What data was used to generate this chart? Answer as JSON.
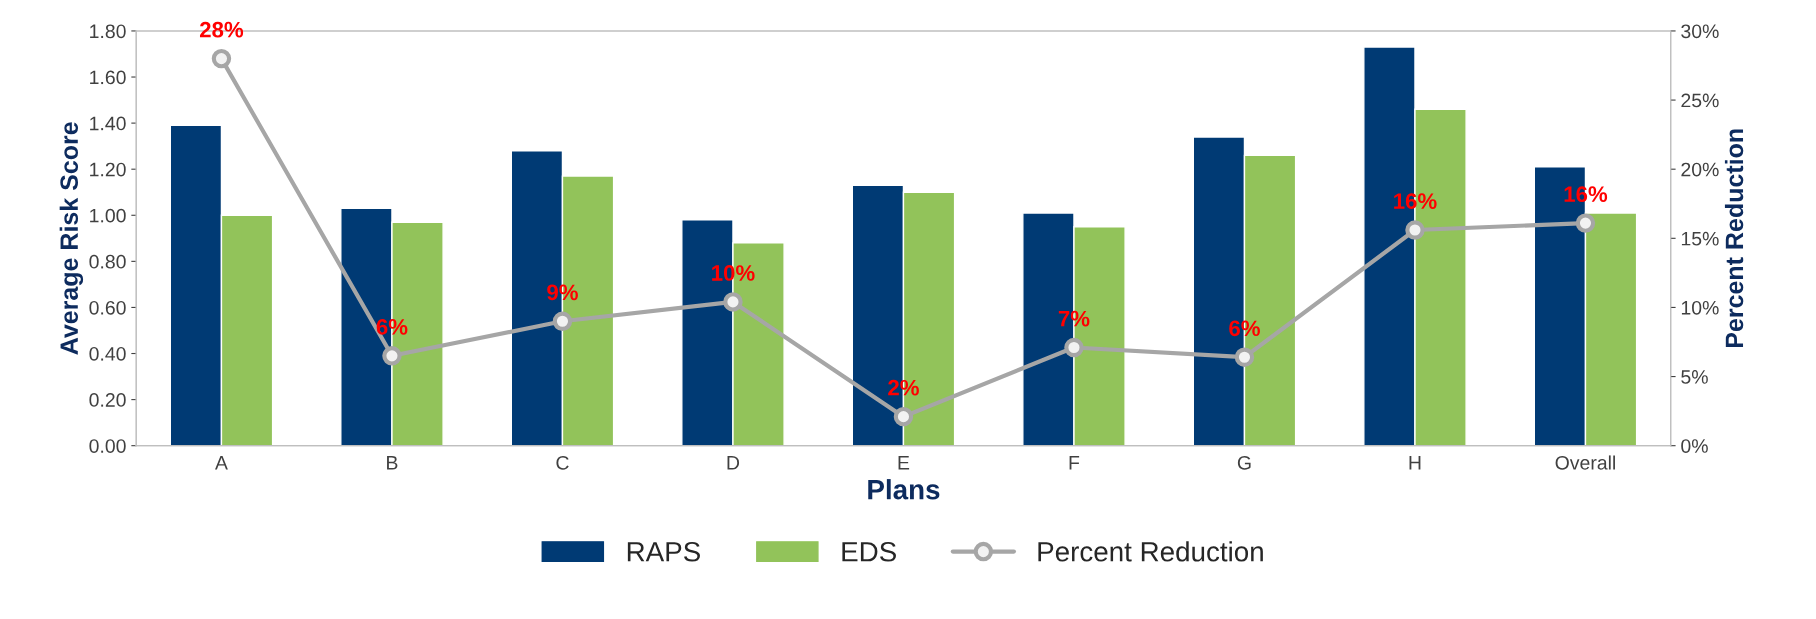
{
  "chart_data": {
    "type": "bar",
    "xlabel": "Plans",
    "ylabel": "Average Risk Score",
    "y2label": "Percent Reduction",
    "categories": [
      "A",
      "B",
      "C",
      "D",
      "E",
      "F",
      "G",
      "H",
      "Overall"
    ],
    "series": [
      {
        "name": "RAPS",
        "color": "#003a74",
        "values": [
          1.39,
          1.03,
          1.28,
          0.98,
          1.13,
          1.01,
          1.34,
          1.73,
          1.21
        ]
      },
      {
        "name": "EDS",
        "color": "#92c35a",
        "values": [
          1.0,
          0.97,
          1.17,
          0.88,
          1.1,
          0.95,
          1.26,
          1.46,
          1.01
        ]
      },
      {
        "name": "Percent Reduction",
        "type": "line",
        "axis": "y2",
        "color": "#a6a6a6",
        "marker": "circle",
        "line_style": "solid",
        "values": [
          28,
          6.5,
          9,
          10.4,
          2.1,
          7.1,
          6.4,
          15.6,
          16.1
        ],
        "value_labels": [
          "28%",
          "6%",
          "9%",
          "10%",
          "2%",
          "7%",
          "6%",
          "16%",
          "16%"
        ]
      }
    ],
    "ylim": [
      0,
      1.8
    ],
    "yticks": [
      {
        "value": 0,
        "label": "0.00"
      },
      {
        "value": 0.2,
        "label": "0.20"
      },
      {
        "value": 0.4,
        "label": "0.40"
      },
      {
        "value": 0.6,
        "label": "0.60"
      },
      {
        "value": 0.8,
        "label": "0.80"
      },
      {
        "value": 1.0,
        "label": "1.00"
      },
      {
        "value": 1.2,
        "label": "1.20"
      },
      {
        "value": 1.4,
        "label": "1.40"
      },
      {
        "value": 1.6,
        "label": "1.60"
      },
      {
        "value": 1.8,
        "label": "1.80"
      }
    ],
    "y2lim": [
      0,
      30
    ],
    "y2ticks": [
      {
        "value": 0,
        "label": "0%"
      },
      {
        "value": 5,
        "label": "5%"
      },
      {
        "value": 10,
        "label": "10%"
      },
      {
        "value": 15,
        "label": "15%"
      },
      {
        "value": 20,
        "label": "20%"
      },
      {
        "value": 25,
        "label": "25%"
      },
      {
        "value": 30,
        "label": "30%"
      }
    ],
    "grid": false,
    "legend": "bottom"
  }
}
